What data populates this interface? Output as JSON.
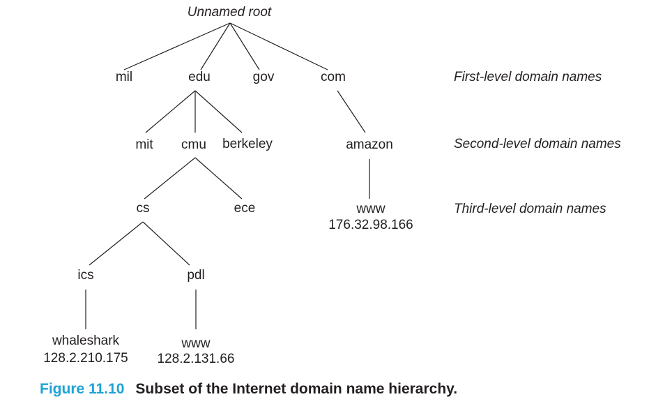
{
  "tree": {
    "root": "Unnamed root",
    "first_level": {
      "mil": "mil",
      "edu": "edu",
      "gov": "gov",
      "com": "com"
    },
    "second_level": {
      "mit": "mit",
      "cmu": "cmu",
      "berkeley": "berkeley",
      "amazon": "amazon"
    },
    "third_level": {
      "cs": "cs",
      "ece": "ece",
      "amazon_www": "www",
      "amazon_www_ip": "176.32.98.166"
    },
    "fourth_level": {
      "ics": "ics",
      "pdl": "pdl"
    },
    "hosts": {
      "whaleshark": "whaleshark",
      "whaleshark_ip": "128.2.210.175",
      "pdl_www": "www",
      "pdl_www_ip": "128.2.131.66"
    }
  },
  "level_labels": {
    "first": "First-level domain names",
    "second": "Second-level domain names",
    "third": "Third-level domain names"
  },
  "caption": {
    "number": "Figure 11.10",
    "text": "Subset of the Internet domain name hierarchy."
  },
  "colors": {
    "caption_number": "#1ba3d6",
    "text": "#231f20",
    "edges": "#231f20"
  }
}
